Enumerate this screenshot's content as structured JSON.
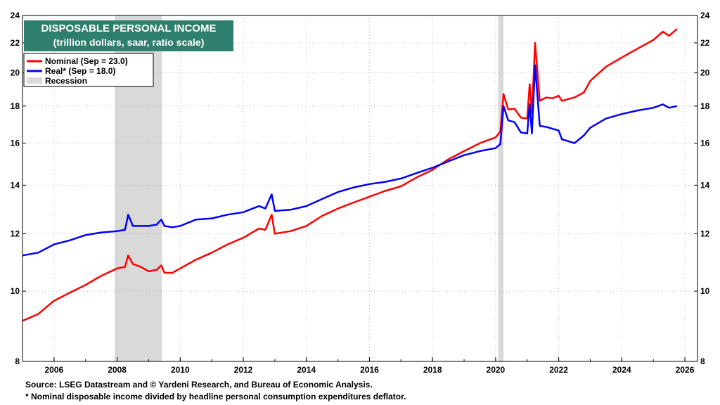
{
  "title": "DISPOSABLE PERSONAL INCOME",
  "subtitle": "(trillion dollars, saar, ratio scale)",
  "footnotes": {
    "source": "Source: LSEG Datastream and © Yardeni Research, and Bureau of Economic Analysis.",
    "note": "* Nominal disposable income divided by headline personal consumption expenditures deflator."
  },
  "colors": {
    "nominal": "#ff0000",
    "real": "#0000ff",
    "recession": "#d9d9d9",
    "title_bg": "#2f7f6f",
    "grid": "#b0b0b0"
  },
  "chart_data": {
    "type": "line",
    "y_scale": "log",
    "xlim": [
      2005.0,
      2026.4
    ],
    "ylim": [
      8,
      24
    ],
    "x_ticks": [
      2006,
      2008,
      2010,
      2012,
      2014,
      2016,
      2018,
      2020,
      2022,
      2024,
      2026
    ],
    "y_ticks": [
      8,
      10,
      12,
      14,
      16,
      18,
      20,
      22,
      24
    ],
    "grid": true,
    "legend_position": "top-left",
    "legend": [
      {
        "key": "nominal",
        "label": "Nominal (Sep = 23.0)"
      },
      {
        "key": "real",
        "label": "Real* (Sep = 18.0)"
      },
      {
        "key": "recession",
        "label": "Recession"
      }
    ],
    "recessions": [
      {
        "start": 2007.92,
        "end": 2009.42
      },
      {
        "start": 2020.08,
        "end": 2020.25
      }
    ],
    "series": [
      {
        "key": "nominal",
        "name": "Nominal (Sep = 23.0)",
        "points": [
          [
            2005.0,
            9.1
          ],
          [
            2005.5,
            9.3
          ],
          [
            2006.0,
            9.7
          ],
          [
            2006.5,
            9.95
          ],
          [
            2007.0,
            10.2
          ],
          [
            2007.5,
            10.5
          ],
          [
            2008.0,
            10.75
          ],
          [
            2008.25,
            10.8
          ],
          [
            2008.35,
            11.2
          ],
          [
            2008.5,
            10.9
          ],
          [
            2008.75,
            10.8
          ],
          [
            2009.0,
            10.65
          ],
          [
            2009.25,
            10.7
          ],
          [
            2009.4,
            10.85
          ],
          [
            2009.5,
            10.6
          ],
          [
            2009.75,
            10.6
          ],
          [
            2010.0,
            10.75
          ],
          [
            2010.5,
            11.05
          ],
          [
            2011.0,
            11.3
          ],
          [
            2011.5,
            11.6
          ],
          [
            2012.0,
            11.85
          ],
          [
            2012.5,
            12.2
          ],
          [
            2012.7,
            12.15
          ],
          [
            2012.9,
            12.75
          ],
          [
            2013.0,
            12.0
          ],
          [
            2013.5,
            12.1
          ],
          [
            2014.0,
            12.3
          ],
          [
            2014.5,
            12.7
          ],
          [
            2015.0,
            13.0
          ],
          [
            2015.5,
            13.25
          ],
          [
            2016.0,
            13.5
          ],
          [
            2016.5,
            13.75
          ],
          [
            2017.0,
            13.95
          ],
          [
            2017.5,
            14.35
          ],
          [
            2018.0,
            14.7
          ],
          [
            2018.5,
            15.2
          ],
          [
            2019.0,
            15.6
          ],
          [
            2019.5,
            16.0
          ],
          [
            2020.0,
            16.3
          ],
          [
            2020.15,
            16.6
          ],
          [
            2020.25,
            18.7
          ],
          [
            2020.4,
            17.8
          ],
          [
            2020.6,
            17.85
          ],
          [
            2020.8,
            17.35
          ],
          [
            2021.0,
            17.3
          ],
          [
            2021.08,
            19.3
          ],
          [
            2021.15,
            17.6
          ],
          [
            2021.25,
            22.0
          ],
          [
            2021.4,
            18.3
          ],
          [
            2021.6,
            18.5
          ],
          [
            2021.8,
            18.45
          ],
          [
            2022.0,
            18.6
          ],
          [
            2022.1,
            18.3
          ],
          [
            2022.5,
            18.5
          ],
          [
            2022.8,
            18.8
          ],
          [
            2023.0,
            19.5
          ],
          [
            2023.5,
            20.4
          ],
          [
            2024.0,
            21.0
          ],
          [
            2024.5,
            21.6
          ],
          [
            2025.0,
            22.2
          ],
          [
            2025.3,
            22.8
          ],
          [
            2025.5,
            22.5
          ],
          [
            2025.75,
            23.0
          ]
        ]
      },
      {
        "key": "real",
        "name": "Real* (Sep = 18.0)",
        "points": [
          [
            2005.0,
            11.2
          ],
          [
            2005.5,
            11.3
          ],
          [
            2006.0,
            11.6
          ],
          [
            2006.5,
            11.75
          ],
          [
            2007.0,
            11.95
          ],
          [
            2007.5,
            12.05
          ],
          [
            2008.0,
            12.1
          ],
          [
            2008.25,
            12.15
          ],
          [
            2008.35,
            12.75
          ],
          [
            2008.5,
            12.3
          ],
          [
            2008.75,
            12.3
          ],
          [
            2009.0,
            12.3
          ],
          [
            2009.25,
            12.35
          ],
          [
            2009.4,
            12.55
          ],
          [
            2009.5,
            12.3
          ],
          [
            2009.75,
            12.25
          ],
          [
            2010.0,
            12.3
          ],
          [
            2010.5,
            12.55
          ],
          [
            2011.0,
            12.6
          ],
          [
            2011.5,
            12.75
          ],
          [
            2012.0,
            12.85
          ],
          [
            2012.5,
            13.1
          ],
          [
            2012.7,
            13.0
          ],
          [
            2012.9,
            13.6
          ],
          [
            2013.0,
            12.9
          ],
          [
            2013.5,
            12.95
          ],
          [
            2014.0,
            13.1
          ],
          [
            2014.5,
            13.4
          ],
          [
            2015.0,
            13.7
          ],
          [
            2015.5,
            13.9
          ],
          [
            2016.0,
            14.05
          ],
          [
            2016.5,
            14.15
          ],
          [
            2017.0,
            14.3
          ],
          [
            2017.5,
            14.55
          ],
          [
            2018.0,
            14.8
          ],
          [
            2018.5,
            15.1
          ],
          [
            2019.0,
            15.4
          ],
          [
            2019.5,
            15.6
          ],
          [
            2020.0,
            15.75
          ],
          [
            2020.15,
            15.95
          ],
          [
            2020.25,
            18.0
          ],
          [
            2020.4,
            17.2
          ],
          [
            2020.6,
            17.1
          ],
          [
            2020.8,
            16.55
          ],
          [
            2021.0,
            16.5
          ],
          [
            2021.08,
            18.1
          ],
          [
            2021.15,
            16.5
          ],
          [
            2021.25,
            20.5
          ],
          [
            2021.4,
            16.9
          ],
          [
            2021.6,
            16.85
          ],
          [
            2021.8,
            16.75
          ],
          [
            2022.0,
            16.65
          ],
          [
            2022.1,
            16.2
          ],
          [
            2022.5,
            16.0
          ],
          [
            2022.8,
            16.4
          ],
          [
            2023.0,
            16.8
          ],
          [
            2023.5,
            17.3
          ],
          [
            2024.0,
            17.55
          ],
          [
            2024.5,
            17.75
          ],
          [
            2025.0,
            17.9
          ],
          [
            2025.3,
            18.1
          ],
          [
            2025.5,
            17.9
          ],
          [
            2025.75,
            18.0
          ]
        ]
      }
    ]
  }
}
